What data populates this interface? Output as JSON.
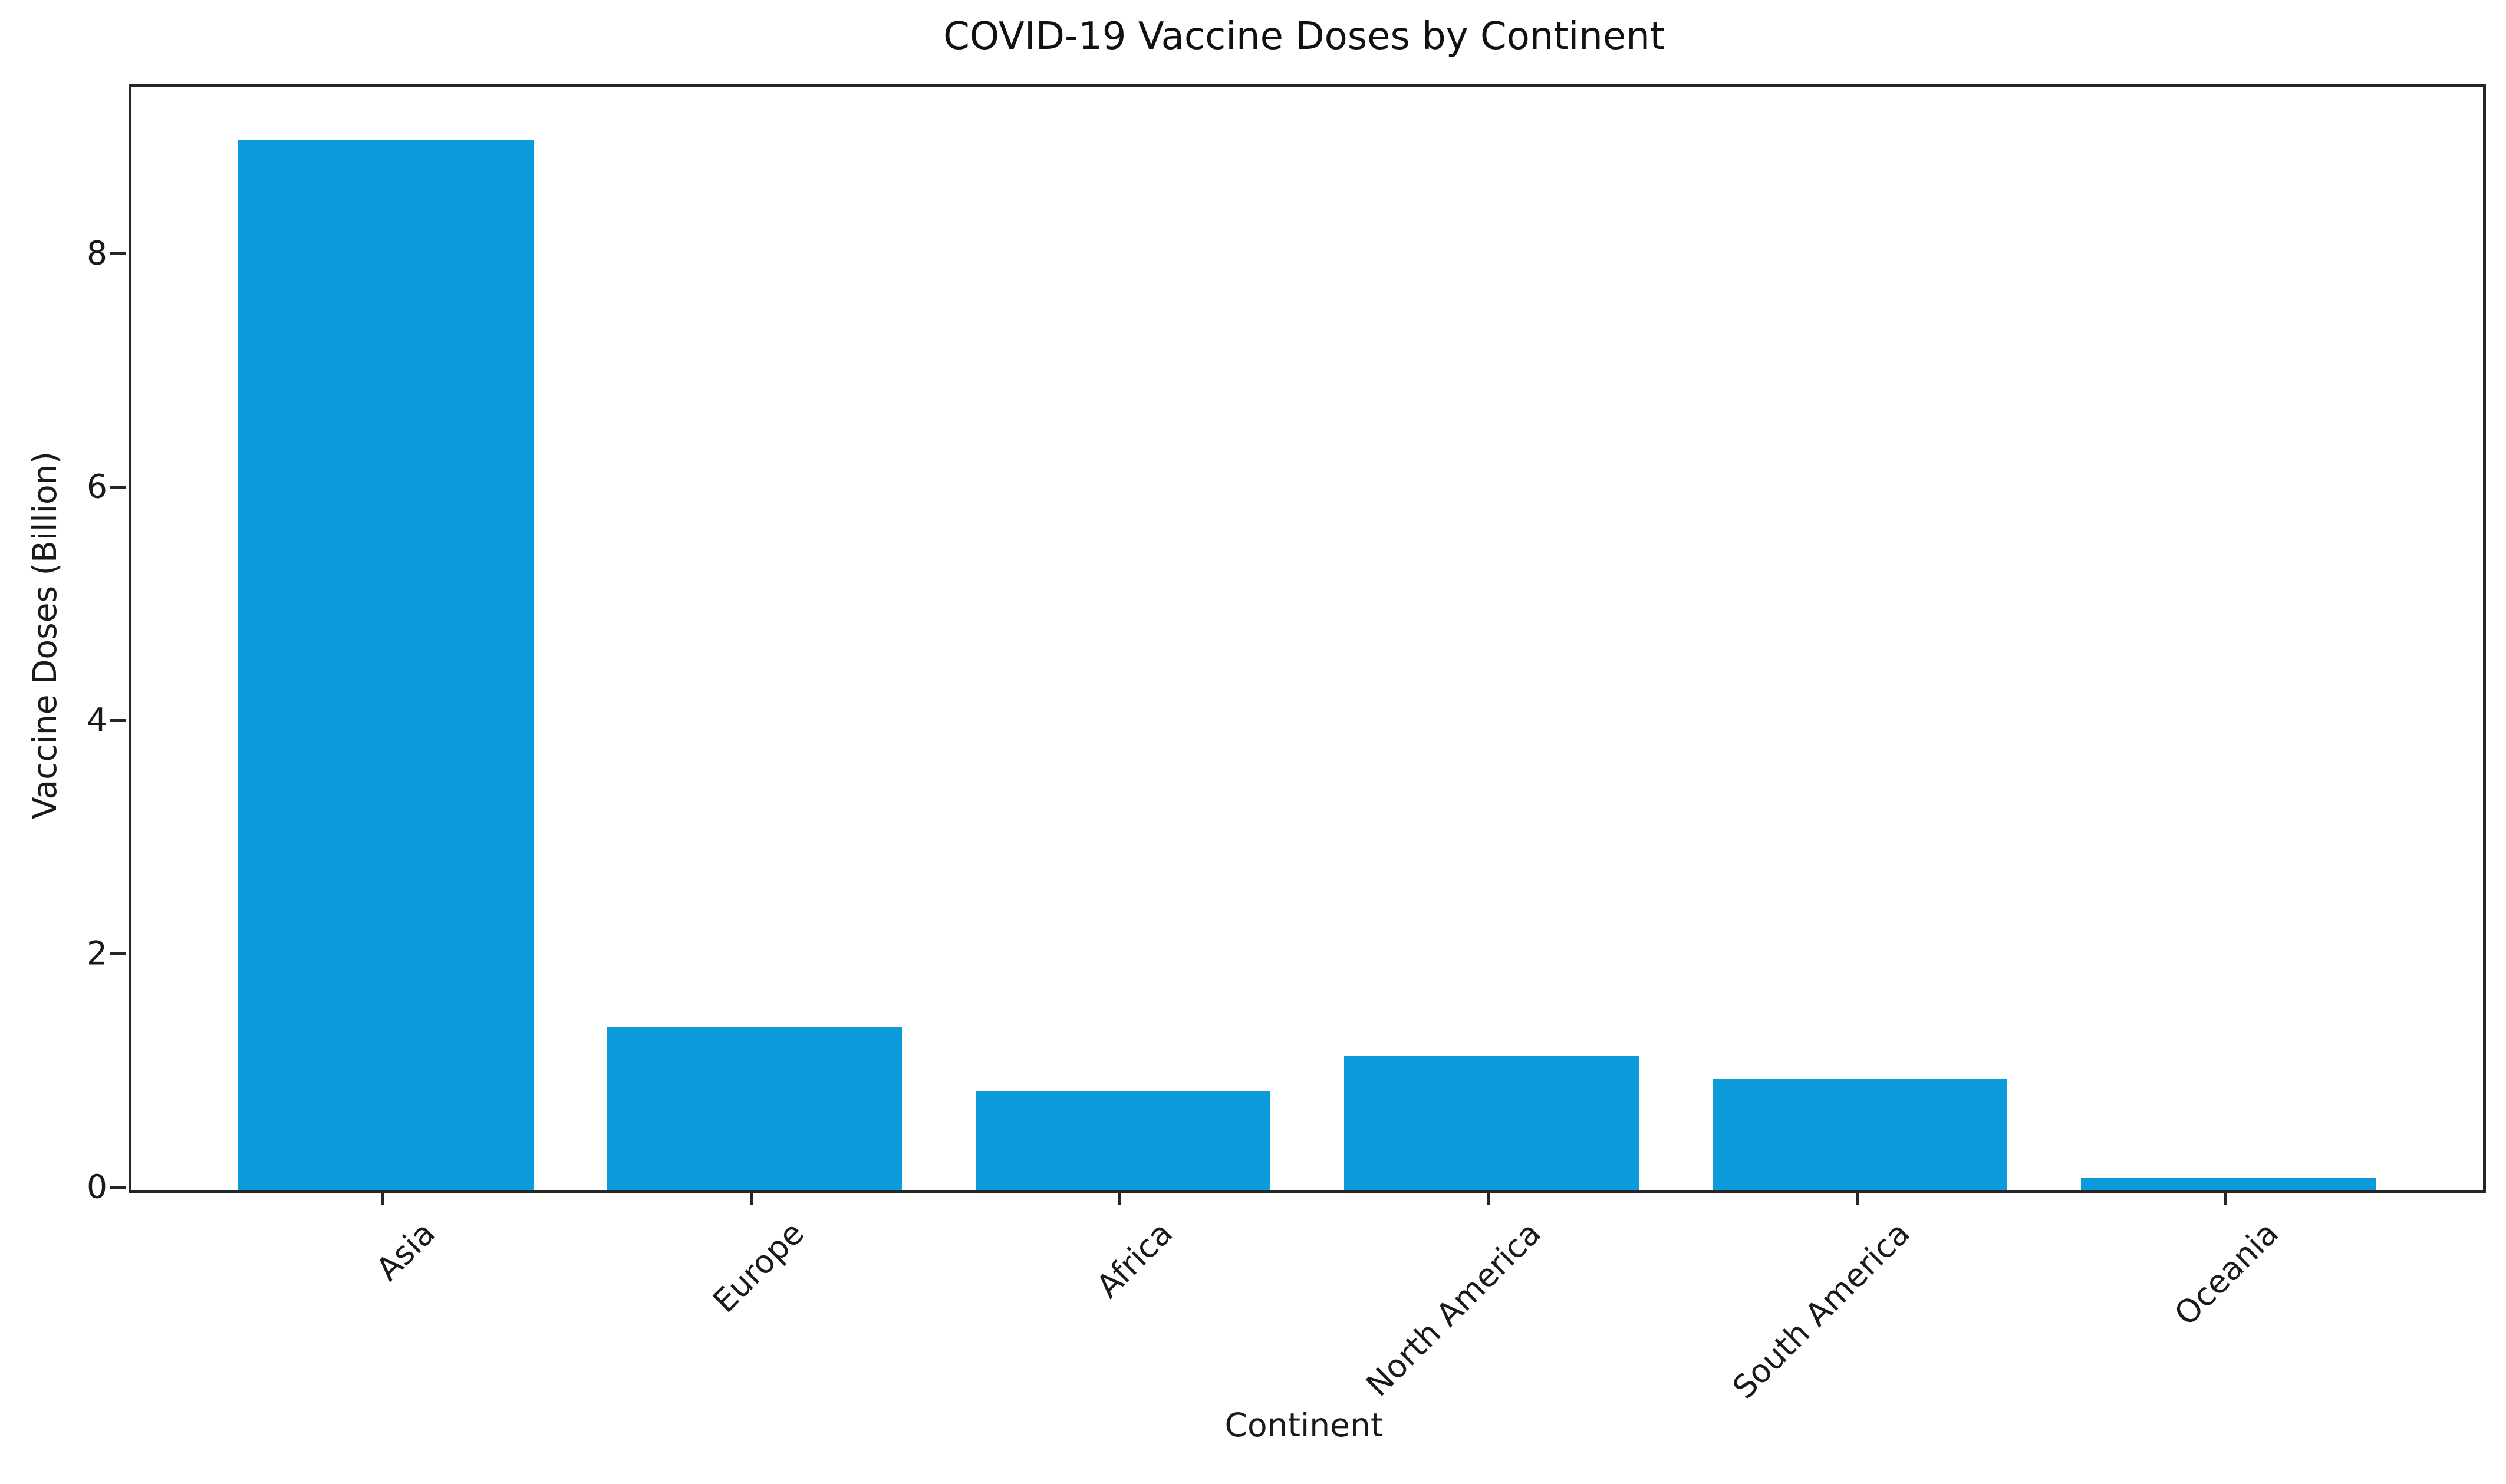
{
  "chart_data": {
    "type": "bar",
    "title": "COVID-19 Vaccine Doses by Continent",
    "xlabel": "Continent",
    "ylabel": "Vaccine Doses (Billion)",
    "categories": [
      "Asia",
      "Europe",
      "Africa",
      "North America",
      "South America",
      "Oceania"
    ],
    "values": [
      9.0,
      1.4,
      0.85,
      1.15,
      0.95,
      0.1
    ],
    "yticks": [
      0,
      2,
      4,
      6,
      8
    ],
    "ylim": [
      0,
      9.45
    ],
    "xlim": [
      -0.69,
      5.69
    ],
    "bar_width": 0.8,
    "x_tick_rotation": 45,
    "grid": false,
    "legend": null,
    "bar_color": "#0c9cdb",
    "spine_color": "#262626",
    "text_color": "#1a1a1a",
    "background_color": "#ffffff"
  }
}
